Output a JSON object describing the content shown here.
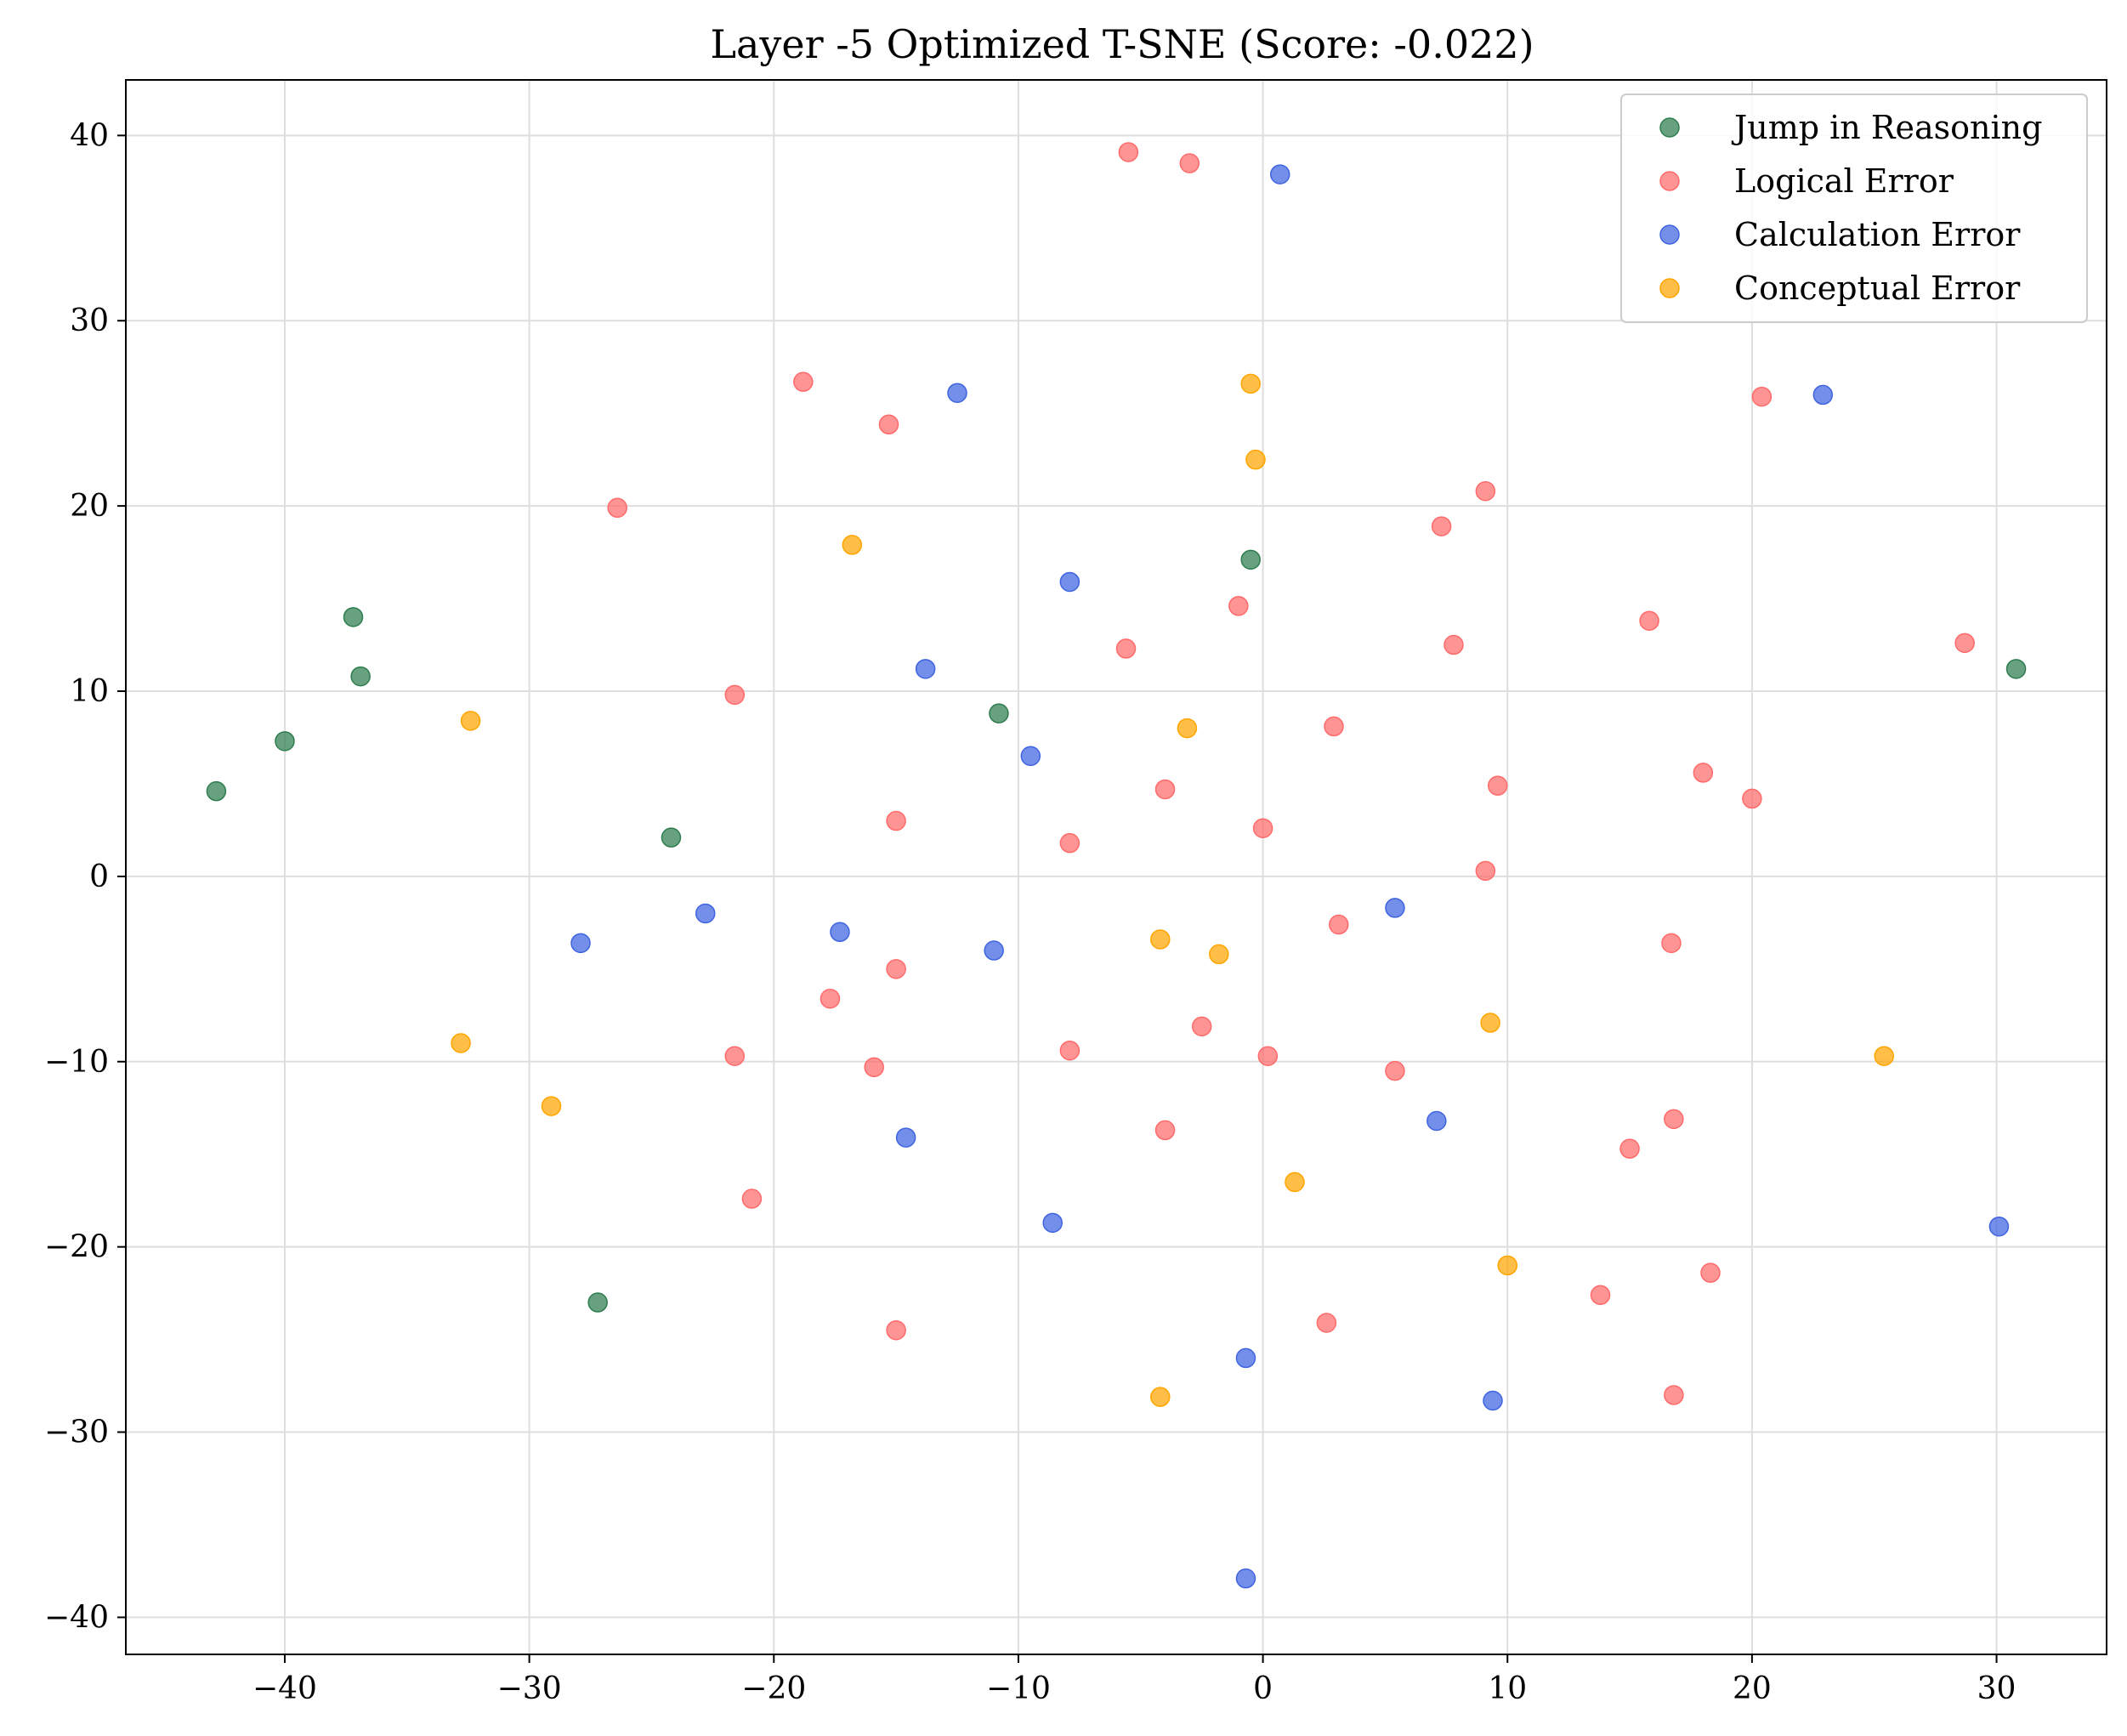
{
  "chart_data": {
    "type": "scatter",
    "title": "Layer -5 Optimized T-SNE (Score: -0.022)",
    "xlabel": "",
    "ylabel": "",
    "xlim": [
      -46.5,
      34.5
    ],
    "ylim": [
      -42,
      43
    ],
    "xticks": [
      -40,
      -30,
      -20,
      -10,
      0,
      10,
      20,
      30
    ],
    "yticks": [
      -40,
      -30,
      -20,
      -10,
      0,
      10,
      20,
      30,
      40
    ],
    "grid": true,
    "legend_position": "top-right",
    "series": [
      {
        "name": "Jump in Reasoning",
        "color": "#2e7d4f",
        "points": [
          [
            -42.8,
            4.6
          ],
          [
            -40.0,
            7.3
          ],
          [
            -37.2,
            14.0
          ],
          [
            -36.9,
            10.8
          ],
          [
            -24.2,
            2.1
          ],
          [
            -10.8,
            8.8
          ],
          [
            -0.5,
            17.1
          ],
          [
            30.8,
            11.2
          ],
          [
            -27.2,
            -23.0
          ]
        ]
      },
      {
        "name": "Logical Error",
        "color": "#ff6b6b",
        "points": [
          [
            -5.5,
            39.1
          ],
          [
            -3.0,
            38.5
          ],
          [
            -18.8,
            26.7
          ],
          [
            -15.3,
            24.4
          ],
          [
            -26.4,
            19.9
          ],
          [
            -21.6,
            9.8
          ],
          [
            -15.0,
            3.0
          ],
          [
            -5.6,
            12.3
          ],
          [
            -1.0,
            14.6
          ],
          [
            7.3,
            18.9
          ],
          [
            9.1,
            20.8
          ],
          [
            7.8,
            12.5
          ],
          [
            15.8,
            13.8
          ],
          [
            20.4,
            25.9
          ],
          [
            28.7,
            12.6
          ],
          [
            2.9,
            8.1
          ],
          [
            -4.0,
            4.7
          ],
          [
            0.0,
            2.6
          ],
          [
            -7.9,
            1.8
          ],
          [
            9.6,
            4.9
          ],
          [
            18.0,
            5.6
          ],
          [
            20.0,
            4.2
          ],
          [
            9.1,
            0.3
          ],
          [
            3.1,
            -2.6
          ],
          [
            16.7,
            -3.6
          ],
          [
            -15.0,
            -5.0
          ],
          [
            -17.7,
            -6.6
          ],
          [
            -21.6,
            -9.7
          ],
          [
            -15.9,
            -10.3
          ],
          [
            -7.9,
            -9.4
          ],
          [
            -2.5,
            -8.1
          ],
          [
            0.2,
            -9.7
          ],
          [
            5.4,
            -10.5
          ],
          [
            -4.0,
            -13.7
          ],
          [
            16.8,
            -13.1
          ],
          [
            15.0,
            -14.7
          ],
          [
            -20.9,
            -17.4
          ],
          [
            2.6,
            -24.1
          ],
          [
            13.8,
            -22.6
          ],
          [
            18.3,
            -21.4
          ],
          [
            -15.0,
            -24.5
          ],
          [
            16.8,
            -28.0
          ]
        ]
      },
      {
        "name": "Calculation Error",
        "color": "#3f64e0",
        "points": [
          [
            0.7,
            37.9
          ],
          [
            -12.5,
            26.1
          ],
          [
            22.9,
            26.0
          ],
          [
            -7.9,
            15.9
          ],
          [
            -13.8,
            11.2
          ],
          [
            -9.5,
            6.5
          ],
          [
            -27.9,
            -3.6
          ],
          [
            -22.8,
            -2.0
          ],
          [
            -17.3,
            -3.0
          ],
          [
            -11.0,
            -4.0
          ],
          [
            5.4,
            -1.7
          ],
          [
            -14.6,
            -14.1
          ],
          [
            7.1,
            -13.2
          ],
          [
            -8.6,
            -18.7
          ],
          [
            30.1,
            -18.9
          ],
          [
            -0.7,
            -26.0
          ],
          [
            9.4,
            -28.3
          ],
          [
            -0.7,
            -37.9
          ]
        ]
      },
      {
        "name": "Conceptual Error",
        "color": "#ffa500",
        "points": [
          [
            -0.5,
            26.6
          ],
          [
            -0.3,
            22.5
          ],
          [
            -16.8,
            17.9
          ],
          [
            -32.4,
            8.4
          ],
          [
            -3.1,
            8.0
          ],
          [
            -4.2,
            -3.4
          ],
          [
            -1.8,
            -4.2
          ],
          [
            9.3,
            -7.9
          ],
          [
            -32.8,
            -9.0
          ],
          [
            -29.1,
            -12.4
          ],
          [
            25.4,
            -9.7
          ],
          [
            1.3,
            -16.5
          ],
          [
            10.0,
            -21.0
          ],
          [
            -4.2,
            -28.1
          ]
        ]
      }
    ]
  }
}
